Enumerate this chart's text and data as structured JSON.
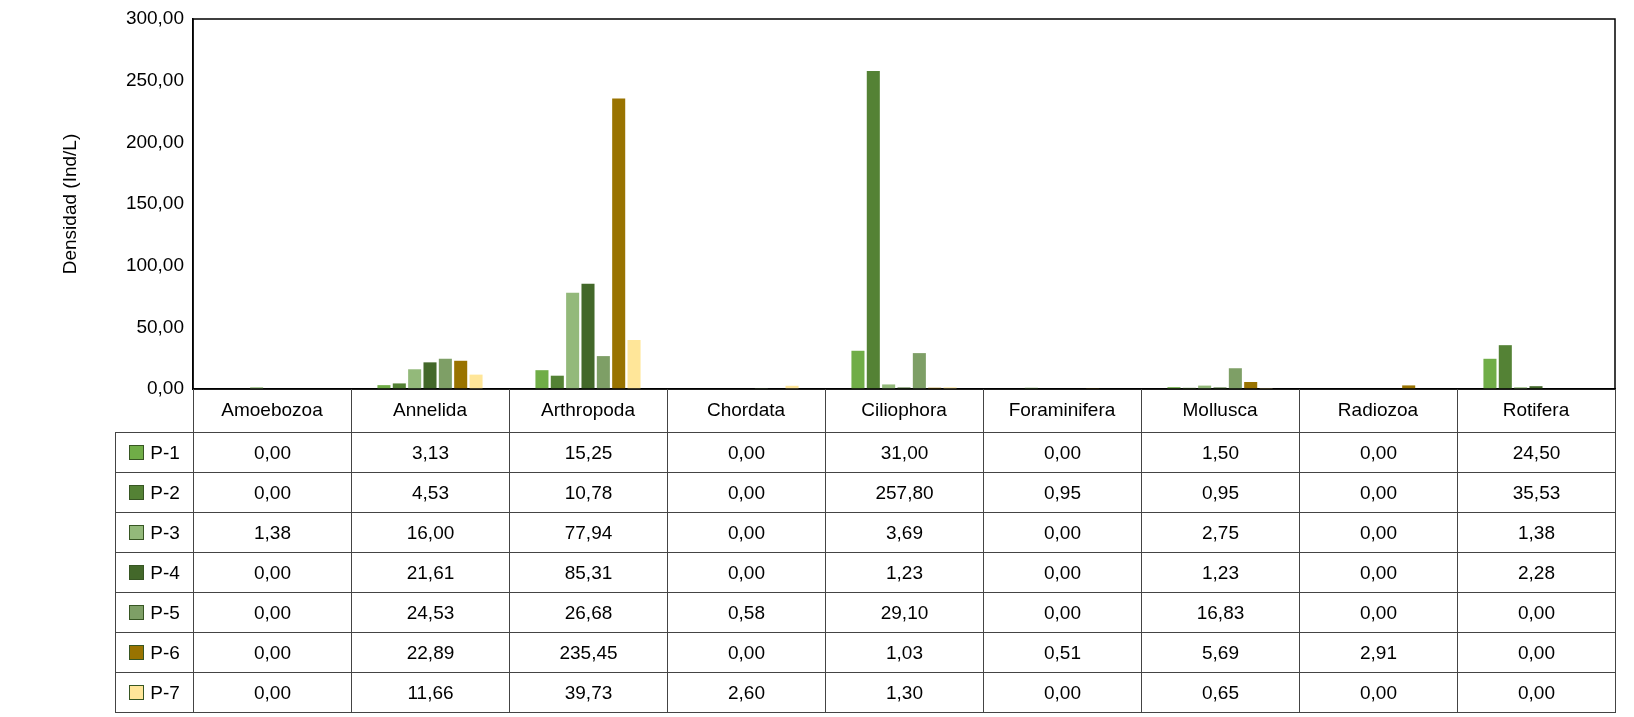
{
  "chart_data": {
    "type": "bar",
    "ylabel": "Densidad (Ind/L)",
    "categories": [
      "Amoebozoa",
      "Annelida",
      "Arthropoda",
      "Chordata",
      "Ciliophora",
      "Foraminifera",
      "Mollusca",
      "Radiozoa",
      "Rotifera"
    ],
    "ylim": [
      0,
      300
    ],
    "yticks": [
      {
        "value": 0,
        "label": "0,00"
      },
      {
        "value": 50,
        "label": "50,00"
      },
      {
        "value": 100,
        "label": "100,00"
      },
      {
        "value": 150,
        "label": "150,00"
      },
      {
        "value": 200,
        "label": "200,00"
      },
      {
        "value": 250,
        "label": "250,00"
      },
      {
        "value": 300,
        "label": "300,00"
      }
    ],
    "grid": false,
    "legend": "bottom left",
    "series": [
      {
        "name": "P-1",
        "color": "#70ad47",
        "values": [
          0,
          3.13,
          15.25,
          0,
          31,
          0,
          1.5,
          0,
          24.5
        ],
        "value_labels": [
          "0,00",
          "3,13",
          "15,25",
          "0,00",
          "31,00",
          "0,00",
          "1,50",
          "0,00",
          "24,50"
        ]
      },
      {
        "name": "P-2",
        "color": "#548235",
        "values": [
          0,
          4.53,
          10.78,
          0,
          257.8,
          0.95,
          0.95,
          0,
          35.53
        ],
        "value_labels": [
          "0,00",
          "4,53",
          "10,78",
          "0,00",
          "257,80",
          "0,95",
          "0,95",
          "0,00",
          "35,53"
        ]
      },
      {
        "name": "P-3",
        "color": "#93b97a",
        "values": [
          1.38,
          16,
          77.94,
          0,
          3.69,
          0,
          2.75,
          0,
          1.38
        ],
        "value_labels": [
          "1,38",
          "16,00",
          "77,94",
          "0,00",
          "3,69",
          "0,00",
          "2,75",
          "0,00",
          "1,38"
        ]
      },
      {
        "name": "P-4",
        "color": "#43682a",
        "values": [
          0,
          21.61,
          85.31,
          0,
          1.23,
          0,
          1.23,
          0,
          2.28
        ],
        "value_labels": [
          "0,00",
          "21,61",
          "85,31",
          "0,00",
          "1,23",
          "0,00",
          "1,23",
          "0,00",
          "2,28"
        ]
      },
      {
        "name": "P-5",
        "color": "#7e9f66",
        "values": [
          0,
          24.53,
          26.68,
          0.58,
          29.1,
          0,
          16.83,
          0,
          0
        ],
        "value_labels": [
          "0,00",
          "24,53",
          "26,68",
          "0,58",
          "29,10",
          "0,00",
          "16,83",
          "0,00",
          "0,00"
        ]
      },
      {
        "name": "P-6",
        "color": "#997300",
        "values": [
          0,
          22.89,
          235.45,
          0,
          1.03,
          0.51,
          5.69,
          2.91,
          0
        ],
        "value_labels": [
          "0,00",
          "22,89",
          "235,45",
          "0,00",
          "1,03",
          "0,51",
          "5,69",
          "2,91",
          "0,00"
        ]
      },
      {
        "name": "P-7",
        "color": "#ffe699",
        "values": [
          0,
          11.66,
          39.73,
          2.6,
          1.3,
          0,
          0.65,
          0,
          0
        ],
        "value_labels": [
          "0,00",
          "11,66",
          "39,73",
          "2,60",
          "1,30",
          "0,00",
          "0,65",
          "0,00",
          "0,00"
        ]
      }
    ]
  }
}
